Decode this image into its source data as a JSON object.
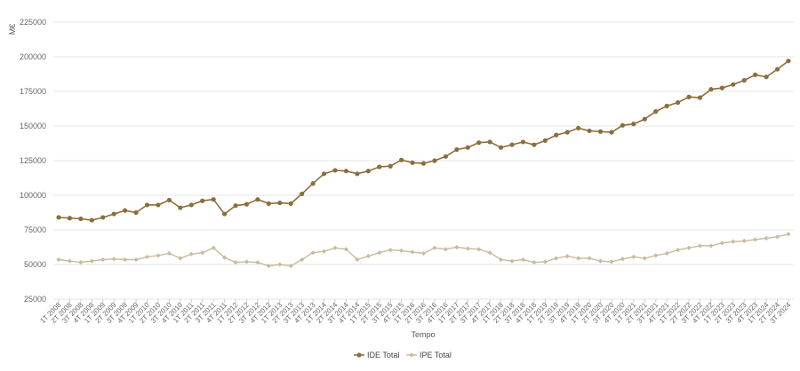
{
  "chart_data": {
    "type": "line",
    "title": "",
    "xlabel": "Tempo",
    "ylabel": "M€",
    "ylim": [
      25000,
      225000
    ],
    "yticks": [
      25000,
      50000,
      75000,
      100000,
      125000,
      150000,
      175000,
      200000,
      225000
    ],
    "ytick_labels": [
      "25000",
      "50000",
      "75000",
      "100000",
      "125000",
      "150000",
      "175000",
      "200000",
      "225000"
    ],
    "grid": true,
    "legend_position": "bottom-center",
    "categories": [
      "1T 2008",
      "2T 2008",
      "3T 2008",
      "4T 2008",
      "1T 2009",
      "2T 2009",
      "3T 2009",
      "4T 2009",
      "1T 2010",
      "2T 2010",
      "3T 2010",
      "4T 2010",
      "1T 2011",
      "2T 2011",
      "3T 2011",
      "4T 2011",
      "1T 2012",
      "2T 2012",
      "3T 2012",
      "4T 2012",
      "1T 2013",
      "2T 2013",
      "3T 2013",
      "4T 2013",
      "1T 2014",
      "2T 2014",
      "3T 2014",
      "4T 2014",
      "1T 2015",
      "2T 2015",
      "3T 2015",
      "4T 2015",
      "1T 2016",
      "2T 2016",
      "3T 2016",
      "4T 2016",
      "1T 2017",
      "2T 2017",
      "3T 2017",
      "4T 2017",
      "1T 2018",
      "2T 2018",
      "3T 2018",
      "4T 2018",
      "1T 2019",
      "2T 2019",
      "3T 2019",
      "4T 2019",
      "1T 2020",
      "2T 2020",
      "3T 2020",
      "4T 2020",
      "1T 2021",
      "2T 2021",
      "3T 2021",
      "4T 2021",
      "1T 2022",
      "2T 2022",
      "3T 2022",
      "4T 2022",
      "1T 2023",
      "2T 2023",
      "3T 2023",
      "4T 2023",
      "1T 2024",
      "2T 2024",
      "3T 2024"
    ],
    "series": [
      {
        "name": "IDE Total",
        "color": "#8B6E3C",
        "values": [
          84000,
          83500,
          83000,
          82000,
          84000,
          86500,
          89000,
          87500,
          93000,
          93000,
          96500,
          91000,
          93000,
          96000,
          97000,
          86500,
          92500,
          93500,
          97000,
          94000,
          94500,
          94000,
          101000,
          108500,
          115500,
          118000,
          117500,
          115500,
          117500,
          120500,
          121000,
          125500,
          123500,
          123000,
          125000,
          128000,
          133000,
          134500,
          138000,
          138500,
          134500,
          136500,
          138500,
          136500,
          139500,
          143500,
          145500,
          148500,
          146500,
          146000,
          145500,
          150500,
          151500,
          155000,
          160500,
          164500,
          167000,
          171000,
          170500,
          176500,
          177500,
          180000,
          183000,
          187000,
          185500,
          191000,
          197000
        ]
      },
      {
        "name": "IPE Total",
        "color": "#C8BC9E",
        "values": [
          53500,
          52500,
          51500,
          52500,
          53500,
          54000,
          53500,
          53500,
          55500,
          56500,
          58000,
          54500,
          57500,
          58500,
          62000,
          55000,
          51500,
          52000,
          51500,
          49000,
          50000,
          49000,
          53500,
          58500,
          59500,
          62000,
          61000,
          53500,
          56000,
          58500,
          60500,
          60000,
          59000,
          58000,
          62000,
          61000,
          62500,
          61500,
          61000,
          58500,
          53500,
          52500,
          53500,
          51500,
          52000,
          54500,
          56000,
          54500,
          54500,
          52500,
          52000,
          54000,
          55500,
          54500,
          56500,
          58000,
          60500,
          62000,
          63500,
          63500,
          65500,
          66500,
          67000,
          68000,
          69000,
          70000,
          72000
        ]
      }
    ]
  }
}
